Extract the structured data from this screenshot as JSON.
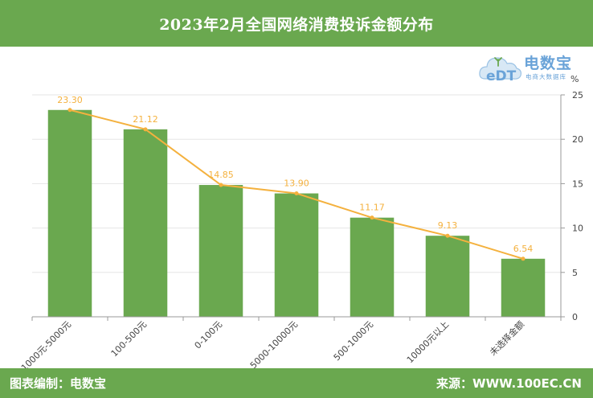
{
  "header": {
    "title": "2023年2月全国网络消费投诉金额分布"
  },
  "footer": {
    "left": "图表编制：电数宝",
    "right": "来源：WWW.100EC.CN"
  },
  "logo": {
    "text": "电数宝",
    "subtitle": "电商大数据库",
    "mark": "eDT"
  },
  "colors": {
    "bar": "#6aa84f",
    "line": "#f4b13e",
    "label": "#f4b13e",
    "header_bg": "#6aa84f"
  },
  "chart_data": {
    "type": "bar",
    "categories": [
      "1000元-5000元",
      "100-500元",
      "0-100元",
      "5000-10000元",
      "500-1000元",
      "10000元以上",
      "未选择金额"
    ],
    "values": [
      23.3,
      21.12,
      14.85,
      13.9,
      11.17,
      9.13,
      6.54
    ],
    "value_labels": [
      "23.30",
      "21.12",
      "14.85",
      "13.90",
      "11.17",
      "9.13",
      "6.54"
    ],
    "overlay": "line",
    "ylim": [
      0,
      25
    ],
    "yticks": [
      0,
      5,
      10,
      15,
      20,
      25
    ],
    "y_axis_side": "right",
    "yunit": "%",
    "grid": true,
    "legend": "none"
  }
}
